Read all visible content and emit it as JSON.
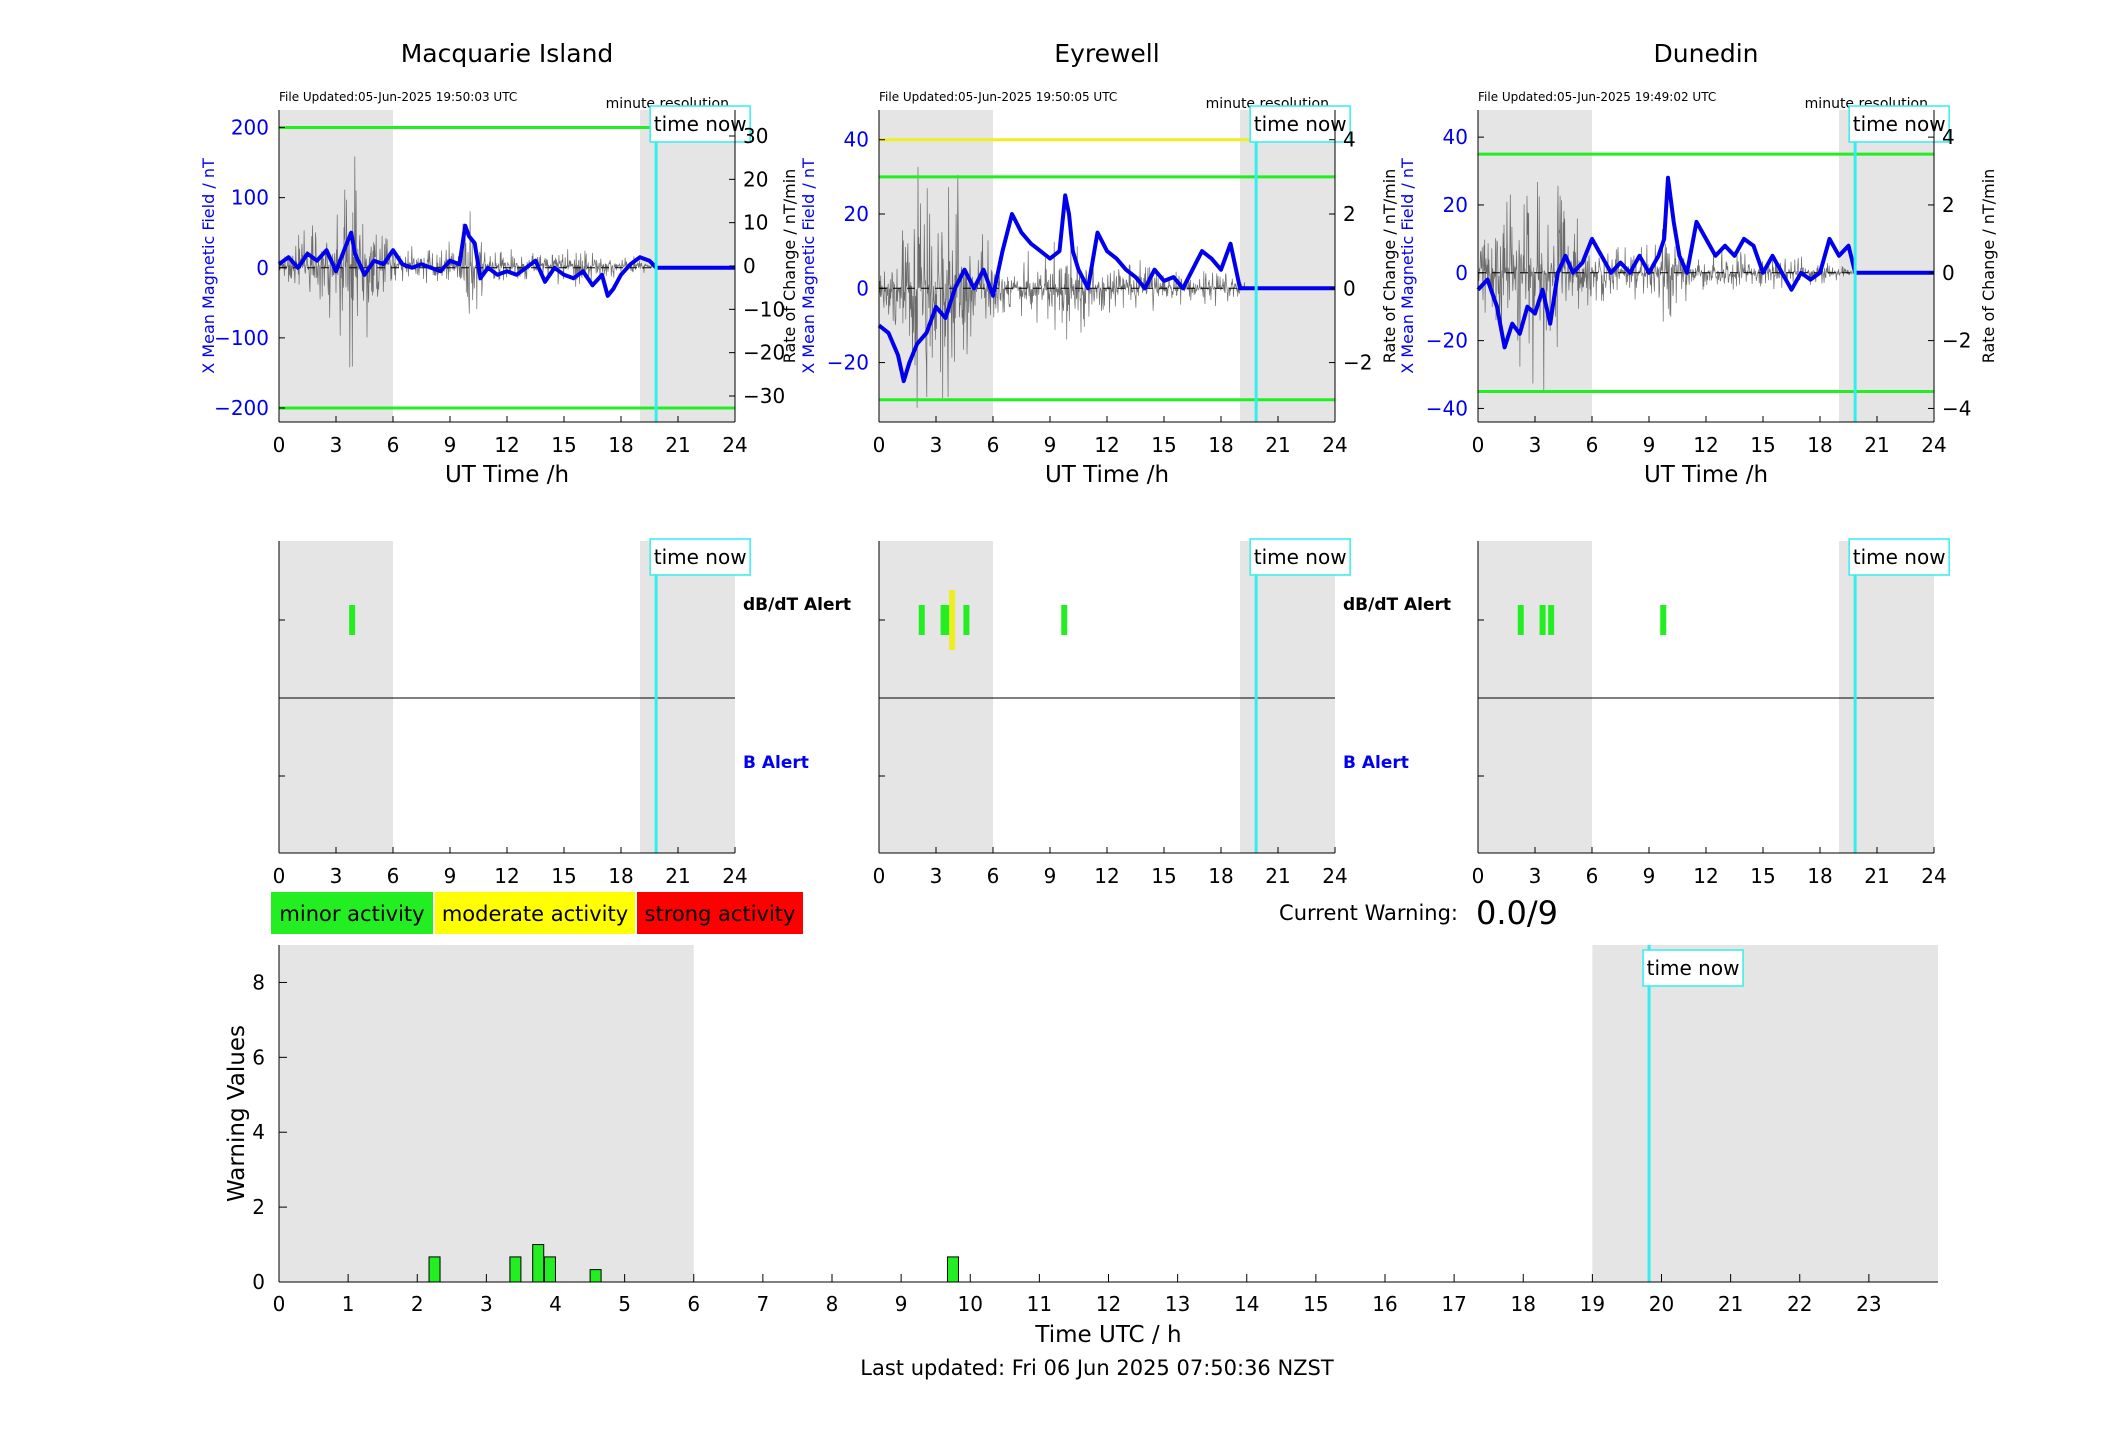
{
  "chart_data": {
    "stations": [
      {
        "type": "line",
        "title": "Macquarie Island",
        "file_updated": "File Updated:05-Jun-2025 19:50:03 UTC",
        "resolution": "minute resolution",
        "xlabel": "UT Time /h",
        "ylabel_left": "X Mean Magnetic Field / nT",
        "ylabel_right": "Rate of Change / nT/min",
        "xlim": [
          0,
          24
        ],
        "ylim_left": [
          -220,
          225
        ],
        "yticks_left": [
          -200,
          -100,
          0,
          100,
          200
        ],
        "ylim_right": [
          -36,
          36
        ],
        "yticks_right": [
          -30,
          -20,
          -10,
          0,
          10,
          20,
          30
        ],
        "xticks": [
          0,
          3,
          6,
          9,
          12,
          15,
          18,
          21,
          24
        ],
        "thresholds": [
          {
            "value": 200,
            "color": "#22ee22"
          },
          {
            "value": -200,
            "color": "#22ee22"
          }
        ],
        "shaded": [
          [
            0,
            6
          ],
          [
            19,
            24
          ]
        ],
        "time_now": 19.85,
        "time_now_label": "time now",
        "field_series": {
          "name": "",
          "color": "#0000ee",
          "x": [
            0,
            0.5,
            1,
            1.5,
            2,
            2.5,
            3,
            3.5,
            3.8,
            4,
            4.5,
            5,
            5.5,
            6,
            6.5,
            7,
            7.5,
            8,
            8.5,
            9,
            9.5,
            9.8,
            10,
            10.3,
            10.6,
            11,
            11.5,
            12,
            12.5,
            13,
            13.5,
            14,
            14.5,
            15,
            15.5,
            16,
            16.5,
            17,
            17.3,
            17.6,
            18,
            18.5,
            19,
            19.5,
            19.85,
            20,
            24
          ],
          "y": [
            5,
            15,
            0,
            20,
            10,
            25,
            -5,
            30,
            50,
            20,
            -10,
            10,
            5,
            25,
            5,
            0,
            5,
            0,
            -5,
            10,
            5,
            60,
            45,
            35,
            -15,
            0,
            -10,
            -5,
            -10,
            0,
            10,
            -20,
            0,
            -10,
            -15,
            -5,
            -25,
            -10,
            -40,
            -30,
            -10,
            5,
            15,
            10,
            0,
            0,
            0
          ]
        },
        "rate_series": {
          "name": "",
          "color": "#555555",
          "amplitude": [
            [
              0,
              4
            ],
            [
              1,
              8
            ],
            [
              2,
              14
            ],
            [
              3,
              22
            ],
            [
              3.8,
              30
            ],
            [
              4.5,
              22
            ],
            [
              6,
              5
            ],
            [
              9.5,
              6
            ],
            [
              10,
              20
            ],
            [
              11,
              5
            ],
            [
              13,
              4
            ],
            [
              15,
              6
            ],
            [
              17,
              4
            ],
            [
              19,
              3
            ],
            [
              19.85,
              0
            ]
          ]
        }
      },
      {
        "type": "line",
        "title": "Eyrewell",
        "file_updated": "File Updated:05-Jun-2025 19:50:05 UTC",
        "resolution": "minute resolution",
        "xlabel": "UT Time /h",
        "ylabel_left": "X Mean Magnetic Field / nT",
        "ylabel_right": "Rate of Change / nT/min",
        "xlim": [
          0,
          24
        ],
        "ylim_left": [
          -36,
          48
        ],
        "yticks_left": [
          -20,
          0,
          20,
          40
        ],
        "ylim_right": [
          -3.6,
          4.8
        ],
        "yticks_right": [
          -2,
          0,
          2,
          4
        ],
        "xticks": [
          0,
          3,
          6,
          9,
          12,
          15,
          18,
          21,
          24
        ],
        "thresholds": [
          {
            "value": 40,
            "color": "#eeee22"
          },
          {
            "value": 30,
            "color": "#22ee22"
          },
          {
            "value": -30,
            "color": "#22ee22"
          }
        ],
        "shaded": [
          [
            0,
            6
          ],
          [
            19,
            24
          ]
        ],
        "time_now": 19.85,
        "time_now_label": "time now",
        "field_series": {
          "name": "",
          "color": "#0000ee",
          "x": [
            0,
            0.5,
            1,
            1.3,
            1.6,
            2,
            2.5,
            3,
            3.5,
            4,
            4.5,
            5,
            5.5,
            6,
            6.5,
            7,
            7.5,
            8,
            8.5,
            9,
            9.5,
            9.8,
            10,
            10.2,
            10.5,
            11,
            11.5,
            12,
            12.5,
            13,
            13.5,
            14,
            14.5,
            15,
            15.5,
            16,
            16.5,
            17,
            17.5,
            18,
            18.5,
            19,
            19.5,
            20,
            24
          ],
          "y": [
            -10,
            -12,
            -18,
            -25,
            -20,
            -15,
            -12,
            -5,
            -8,
            0,
            5,
            0,
            5,
            -2,
            10,
            20,
            15,
            12,
            10,
            8,
            10,
            25,
            20,
            10,
            5,
            0,
            15,
            10,
            8,
            5,
            3,
            0,
            5,
            2,
            3,
            0,
            5,
            10,
            8,
            5,
            12,
            0,
            0,
            0,
            0
          ]
        },
        "rate_series": {
          "name": "",
          "color": "#555555",
          "amplitude": [
            [
              0,
              1.0
            ],
            [
              1,
              2.0
            ],
            [
              2,
              3.5
            ],
            [
              3,
              4.5
            ],
            [
              4,
              4.0
            ],
            [
              5,
              2.5
            ],
            [
              6,
              1.0
            ],
            [
              9,
              1.2
            ],
            [
              10,
              2.0
            ],
            [
              11,
              1.0
            ],
            [
              14,
              0.8
            ],
            [
              17,
              0.6
            ],
            [
              19,
              0.4
            ],
            [
              19.85,
              0
            ]
          ]
        }
      },
      {
        "type": "line",
        "title": "Dunedin",
        "file_updated": "File Updated:05-Jun-2025 19:49:02 UTC",
        "resolution": "minute resolution",
        "xlabel": "UT Time /h",
        "ylabel_left": "X Mean Magnetic Field / nT",
        "ylabel_right": "Rate of Change / nT/min",
        "xlim": [
          0,
          24
        ],
        "ylim_left": [
          -44,
          48
        ],
        "yticks_left": [
          -40,
          -20,
          0,
          20,
          40
        ],
        "ylim_right": [
          -4.4,
          4.8
        ],
        "yticks_right": [
          -4,
          -2,
          0,
          2,
          4
        ],
        "xticks": [
          0,
          3,
          6,
          9,
          12,
          15,
          18,
          21,
          24
        ],
        "thresholds": [
          {
            "value": 35,
            "color": "#22ee22"
          },
          {
            "value": -35,
            "color": "#22ee22"
          }
        ],
        "shaded": [
          [
            0,
            6
          ],
          [
            19,
            24
          ]
        ],
        "time_now": 19.85,
        "time_now_label": "time now",
        "field_series": {
          "name": "",
          "color": "#0000ee",
          "x": [
            0,
            0.5,
            1,
            1.4,
            1.8,
            2.2,
            2.6,
            3,
            3.4,
            3.8,
            4.2,
            4.6,
            5,
            5.5,
            6,
            6.5,
            7,
            7.5,
            8,
            8.5,
            9,
            9.5,
            9.8,
            10,
            10.3,
            10.6,
            11,
            11.5,
            12,
            12.5,
            13,
            13.5,
            14,
            14.5,
            15,
            15.5,
            16,
            16.5,
            17,
            17.5,
            18,
            18.5,
            19,
            19.5,
            19.85,
            20,
            24
          ],
          "y": [
            -5,
            -2,
            -10,
            -22,
            -15,
            -18,
            -10,
            -12,
            -5,
            -15,
            0,
            5,
            0,
            3,
            10,
            5,
            0,
            3,
            0,
            5,
            0,
            5,
            10,
            28,
            15,
            5,
            0,
            15,
            10,
            5,
            8,
            5,
            10,
            8,
            0,
            5,
            0,
            -5,
            0,
            -2,
            0,
            10,
            5,
            8,
            0,
            0,
            0
          ]
        },
        "rate_series": {
          "name": "",
          "color": "#555555",
          "amplitude": [
            [
              0,
              1.0
            ],
            [
              1,
              2.0
            ],
            [
              2,
              3.0
            ],
            [
              3,
              4.0
            ],
            [
              3.6,
              4.0
            ],
            [
              4.5,
              2.5
            ],
            [
              6,
              1.0
            ],
            [
              9,
              1.0
            ],
            [
              10,
              1.8
            ],
            [
              11,
              0.8
            ],
            [
              14,
              0.7
            ],
            [
              17,
              0.6
            ],
            [
              19,
              0.4
            ],
            [
              19.85,
              0
            ]
          ]
        }
      }
    ],
    "alerts": [
      {
        "shaded": [
          [
            0,
            6
          ],
          [
            19,
            24
          ]
        ],
        "time_now": 19.85,
        "time_now_label": "time now",
        "dbdt_events": [
          {
            "x": 3.85,
            "color": "#22ee22"
          }
        ],
        "b_events": [],
        "label_dbdt": "dB/dT Alert",
        "label_b": "B Alert",
        "xticks": [
          0,
          3,
          6,
          9,
          12,
          15,
          18,
          21,
          24
        ]
      },
      {
        "shaded": [
          [
            0,
            6
          ],
          [
            19,
            24
          ]
        ],
        "time_now": 19.85,
        "time_now_label": "time now",
        "dbdt_events": [
          {
            "x": 2.25,
            "color": "#22ee22"
          },
          {
            "x": 3.4,
            "color": "#22ee22"
          },
          {
            "x": 3.65,
            "color": "#22ee22"
          },
          {
            "x": 4.6,
            "color": "#22ee22"
          },
          {
            "x": 9.75,
            "color": "#22ee22"
          },
          {
            "x": 3.85,
            "color": "#eeee22"
          }
        ],
        "b_events": [],
        "label_dbdt": "dB/dT Alert",
        "label_b": "B Alert",
        "xticks": [
          0,
          3,
          6,
          9,
          12,
          15,
          18,
          21,
          24
        ]
      },
      {
        "shaded": [
          [
            0,
            6
          ],
          [
            19,
            24
          ]
        ],
        "time_now": 19.85,
        "time_now_label": "time now",
        "dbdt_events": [
          {
            "x": 2.25,
            "color": "#22ee22"
          },
          {
            "x": 3.4,
            "color": "#22ee22"
          },
          {
            "x": 3.85,
            "color": "#22ee22"
          },
          {
            "x": 9.75,
            "color": "#22ee22"
          }
        ],
        "b_events": [],
        "label_dbdt": "",
        "label_b": "",
        "xticks": [
          0,
          3,
          6,
          9,
          12,
          15,
          18,
          21,
          24
        ]
      }
    ],
    "legend": [
      {
        "label": "minor activity",
        "color": "#22ee22"
      },
      {
        "label": "moderate activity",
        "color": "#ffff00"
      },
      {
        "label": "strong activity",
        "color": "#ff0000"
      }
    ],
    "current_warning": {
      "label": "Current Warning:",
      "value": "0.0/9"
    },
    "warnings": {
      "type": "bar",
      "xlabel": "Time UTC / h",
      "ylabel": "Warning Values",
      "xlim": [
        0,
        24
      ],
      "ylim": [
        0,
        9
      ],
      "yticks": [
        0,
        2,
        4,
        6,
        8
      ],
      "xticks": [
        0,
        1,
        2,
        3,
        4,
        5,
        6,
        7,
        8,
        9,
        10,
        11,
        12,
        13,
        14,
        15,
        16,
        17,
        18,
        19,
        20,
        21,
        22,
        23
      ],
      "shaded": [
        [
          0,
          6
        ],
        [
          19,
          24
        ]
      ],
      "time_now": 19.82,
      "time_now_label": "time now",
      "bar_color": "#22ee22",
      "bars": [
        {
          "x": 2.25,
          "value": 0.67
        },
        {
          "x": 3.42,
          "value": 0.67
        },
        {
          "x": 3.75,
          "value": 1.0
        },
        {
          "x": 3.92,
          "value": 0.67
        },
        {
          "x": 4.58,
          "value": 0.33
        },
        {
          "x": 9.75,
          "value": 0.67
        }
      ]
    },
    "last_updated": "Last updated: Fri 06 Jun 2025 07:50:36 NZST"
  }
}
